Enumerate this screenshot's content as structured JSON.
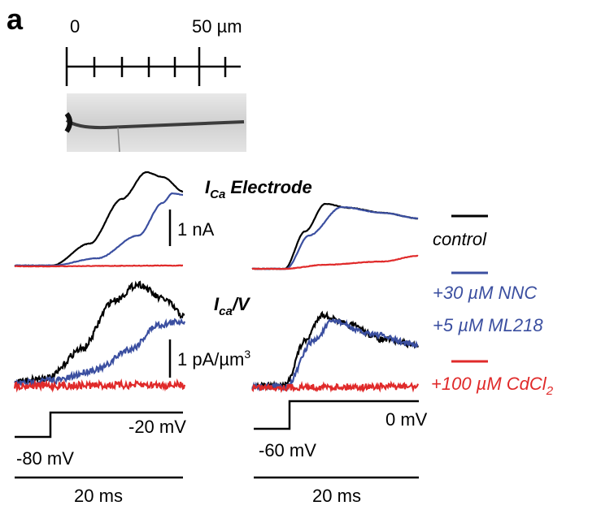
{
  "panel_label": "a",
  "scale_bar": {
    "start_label": "0",
    "end_label": "50 µm"
  },
  "electrode_title": {
    "main": "I",
    "sub": "Ca",
    "rest": " Electrode"
  },
  "current_scale": "1 nA",
  "density_title": {
    "main": "I",
    "sub": "ca",
    "rest": "/V"
  },
  "density_scale": {
    "main": "1 pA/µm",
    "sup": "3"
  },
  "legend": {
    "control": "control",
    "nnc_line1": "+30 µM NNC",
    "nnc_line2": "+5 µM ML218",
    "cd": {
      "main": "+100 µM CdCl",
      "sub": "2"
    }
  },
  "left_protocol": {
    "test": "-20 mV",
    "hold": "-80 mV",
    "time": "20 ms"
  },
  "right_protocol": {
    "test": "0 mV",
    "hold": "-60 mV",
    "time": "20 ms"
  }
}
